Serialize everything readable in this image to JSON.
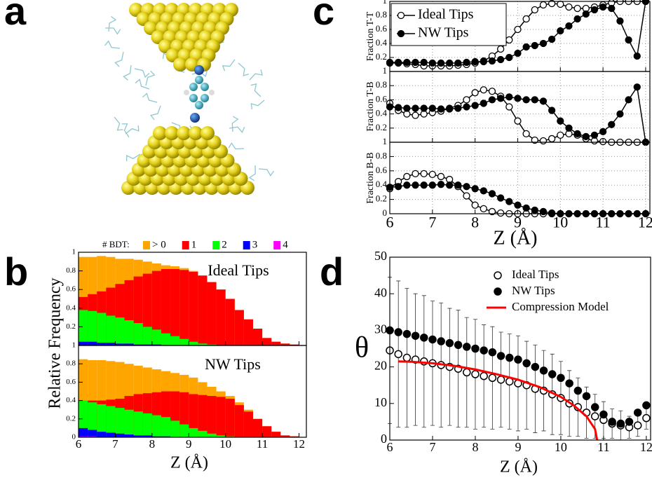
{
  "panel_labels": [
    "a",
    "b",
    "c",
    "d"
  ],
  "chart_data": [
    {
      "type": "area",
      "annotation": "Ideal Tips",
      "legend_title": "# BDT:",
      "x": [
        6,
        6.25,
        6.5,
        6.75,
        7,
        7.25,
        7.5,
        7.75,
        8,
        8.25,
        8.5,
        8.75,
        9,
        9.25,
        9.5,
        9.75,
        10,
        10.25,
        10.5,
        10.75,
        11,
        11.25,
        11.5,
        11.75,
        12
      ],
      "series": [
        {
          "name": "> 0",
          "color": "#ffa500",
          "values": [
            0.95,
            0.95,
            0.96,
            0.95,
            0.93,
            0.93,
            0.92,
            0.9,
            0.88,
            0.86,
            0.85,
            0.83,
            0.8,
            0.75,
            0.68,
            0.6,
            0.5,
            0.38,
            0.28,
            0.18,
            0.08,
            0.04,
            0.02,
            0.01,
            0
          ]
        },
        {
          "name": "1",
          "color": "#ff0000",
          "values": [
            0.52,
            0.55,
            0.58,
            0.62,
            0.66,
            0.7,
            0.74,
            0.77,
            0.8,
            0.82,
            0.82,
            0.81,
            0.79,
            0.75,
            0.68,
            0.6,
            0.5,
            0.38,
            0.28,
            0.18,
            0.08,
            0.04,
            0.02,
            0.01,
            0
          ]
        },
        {
          "name": "2",
          "color": "#00ff00",
          "values": [
            0.38,
            0.37,
            0.35,
            0.32,
            0.3,
            0.27,
            0.24,
            0.2,
            0.17,
            0.13,
            0.1,
            0.07,
            0.04,
            0.02,
            0.01,
            0,
            0,
            0,
            0,
            0,
            0,
            0,
            0,
            0,
            0
          ]
        },
        {
          "name": "3",
          "color": "#0000ff",
          "values": [
            0.04,
            0.04,
            0.03,
            0.03,
            0.02,
            0.02,
            0.01,
            0.01,
            0.01,
            0,
            0,
            0,
            0,
            0,
            0,
            0,
            0,
            0,
            0,
            0,
            0,
            0,
            0,
            0,
            0
          ]
        },
        {
          "name": "4",
          "color": "#ff00ff",
          "values": [
            0,
            0,
            0,
            0,
            0,
            0,
            0,
            0,
            0,
            0,
            0,
            0,
            0,
            0,
            0,
            0,
            0,
            0,
            0,
            0,
            0,
            0,
            0,
            0,
            0
          ]
        }
      ],
      "xlim": [
        6,
        12.2
      ],
      "xticks": [
        6,
        7,
        8,
        9,
        10,
        11,
        12
      ],
      "xtick_labels": false,
      "ylim": [
        0,
        1
      ],
      "yticks": [
        0.2,
        0.4,
        0.6,
        0.8,
        1
      ],
      "grid": false
    },
    {
      "type": "area",
      "annotation": "NW Tips",
      "xlabel": "Z (Å)",
      "ylabel": "Relative Frequency",
      "x": [
        6,
        6.25,
        6.5,
        6.75,
        7,
        7.25,
        7.5,
        7.75,
        8,
        8.25,
        8.5,
        8.75,
        9,
        9.25,
        9.5,
        9.75,
        10,
        10.25,
        10.5,
        10.75,
        11,
        11.25,
        11.5,
        11.75,
        12
      ],
      "series": [
        {
          "color": "#ffa500",
          "values": [
            0.85,
            0.84,
            0.84,
            0.83,
            0.82,
            0.8,
            0.78,
            0.76,
            0.74,
            0.72,
            0.7,
            0.68,
            0.65,
            0.6,
            0.55,
            0.5,
            0.45,
            0.38,
            0.3,
            0.2,
            0.12,
            0.06,
            0.02,
            0.01,
            0
          ]
        },
        {
          "color": "#ff0000",
          "values": [
            0.4,
            0.4,
            0.4,
            0.41,
            0.42,
            0.45,
            0.47,
            0.48,
            0.49,
            0.5,
            0.5,
            0.49,
            0.47,
            0.46,
            0.45,
            0.44,
            0.42,
            0.35,
            0.28,
            0.2,
            0.12,
            0.06,
            0.02,
            0.01,
            0
          ]
        },
        {
          "color": "#00ff00",
          "values": [
            0.4,
            0.38,
            0.36,
            0.34,
            0.32,
            0.3,
            0.28,
            0.26,
            0.24,
            0.22,
            0.18,
            0.14,
            0.1,
            0.07,
            0.04,
            0.02,
            0.01,
            0,
            0,
            0,
            0,
            0,
            0,
            0,
            0
          ]
        },
        {
          "color": "#0000ff",
          "values": [
            0.1,
            0.08,
            0.06,
            0.05,
            0.04,
            0.03,
            0.02,
            0.02,
            0.01,
            0.01,
            0,
            0,
            0,
            0,
            0,
            0,
            0,
            0,
            0,
            0,
            0,
            0,
            0,
            0,
            0
          ]
        },
        {
          "color": "#ff00ff",
          "values": [
            0.01,
            0.01,
            0,
            0,
            0,
            0,
            0,
            0,
            0,
            0,
            0,
            0,
            0,
            0,
            0,
            0,
            0,
            0,
            0,
            0,
            0,
            0,
            0,
            0,
            0
          ]
        }
      ],
      "xlim": [
        6,
        12.2
      ],
      "xticks": [
        6,
        7,
        8,
        9,
        10,
        11,
        12
      ],
      "ylim": [
        0,
        1
      ],
      "yticks": [
        0,
        0.2,
        0.4,
        0.6,
        0.8,
        1
      ],
      "grid": false
    },
    {
      "type": "line",
      "ylabel": "Fraction T-T",
      "x": [
        6,
        6.2,
        6.4,
        6.6,
        6.8,
        7,
        7.2,
        7.4,
        7.6,
        7.8,
        8,
        8.2,
        8.4,
        8.6,
        8.8,
        9,
        9.2,
        9.4,
        9.6,
        9.8,
        10,
        10.2,
        10.4,
        10.6,
        10.8,
        11,
        11.2,
        11.4,
        11.6,
        11.8,
        12
      ],
      "series": [
        {
          "name": "Ideal Tips",
          "color": "#000000",
          "marker": "open",
          "values": [
            0.12,
            0.12,
            0.11,
            0.1,
            0.08,
            0.08,
            0.08,
            0.08,
            0.09,
            0.1,
            0.12,
            0.15,
            0.22,
            0.32,
            0.45,
            0.6,
            0.75,
            0.88,
            0.95,
            0.97,
            0.96,
            0.92,
            0.9,
            0.9,
            0.92,
            0.95,
            0.98,
            1,
            1,
            1,
            1
          ]
        },
        {
          "name": "NW Tips",
          "color": "#000000",
          "marker": "filled",
          "values": [
            0.13,
            0.13,
            0.13,
            0.13,
            0.13,
            0.12,
            0.12,
            0.12,
            0.12,
            0.13,
            0.14,
            0.14,
            0.15,
            0.17,
            0.2,
            0.26,
            0.35,
            0.37,
            0.4,
            0.46,
            0.58,
            0.65,
            0.75,
            0.82,
            0.88,
            0.92,
            0.9,
            0.72,
            0.45,
            0.22,
            1
          ]
        }
      ],
      "xlim": [
        6,
        12.1
      ],
      "xticks": [
        6,
        7,
        8,
        9,
        10,
        11,
        12
      ],
      "xtick_labels": false,
      "ylim": [
        0,
        1
      ],
      "yticks": [
        0.2,
        0.4,
        0.6,
        0.8,
        1
      ],
      "grid": true
    },
    {
      "type": "line",
      "ylabel": "Fraction T-B",
      "x": [
        6,
        6.2,
        6.4,
        6.6,
        6.8,
        7,
        7.2,
        7.4,
        7.6,
        7.8,
        8,
        8.2,
        8.4,
        8.6,
        8.8,
        9,
        9.2,
        9.4,
        9.6,
        9.8,
        10,
        10.2,
        10.4,
        10.6,
        10.8,
        11,
        11.2,
        11.4,
        11.6,
        11.8,
        12
      ],
      "series": [
        {
          "color": "#000000",
          "marker": "open",
          "values": [
            0.55,
            0.45,
            0.4,
            0.38,
            0.4,
            0.42,
            0.44,
            0.48,
            0.52,
            0.6,
            0.7,
            0.74,
            0.72,
            0.65,
            0.5,
            0.3,
            0.12,
            0.03,
            0.02,
            0.05,
            0.1,
            0.12,
            0.1,
            0.05,
            0.02,
            0.01,
            0,
            0,
            0,
            0,
            0
          ]
        },
        {
          "color": "#000000",
          "marker": "filled",
          "values": [
            0.5,
            0.49,
            0.48,
            0.48,
            0.48,
            0.48,
            0.47,
            0.47,
            0.48,
            0.5,
            0.52,
            0.55,
            0.6,
            0.62,
            0.64,
            0.62,
            0.6,
            0.6,
            0.58,
            0.45,
            0.3,
            0.2,
            0.12,
            0.08,
            0.1,
            0.15,
            0.25,
            0.4,
            0.6,
            0.78,
            0
          ]
        }
      ],
      "xlim": [
        6,
        12.1
      ],
      "xticks": [
        6,
        7,
        8,
        9,
        10,
        11,
        12
      ],
      "xtick_labels": false,
      "ylim": [
        0,
        1
      ],
      "yticks": [
        0.2,
        0.4,
        0.6,
        0.8,
        1
      ],
      "grid": true
    },
    {
      "type": "line",
      "ylabel": "Fraction B-B",
      "xlabel": "Z (Å)",
      "x": [
        6,
        6.2,
        6.4,
        6.6,
        6.8,
        7,
        7.2,
        7.4,
        7.6,
        7.8,
        8,
        8.2,
        8.4,
        8.6,
        8.8,
        9,
        9.2,
        9.4,
        9.6,
        9.8,
        10,
        10.2,
        10.4,
        10.6,
        10.8,
        11,
        11.2,
        11.4,
        11.6,
        11.8,
        12
      ],
      "series": [
        {
          "color": "#000000",
          "marker": "open",
          "values": [
            0.35,
            0.45,
            0.52,
            0.56,
            0.56,
            0.55,
            0.52,
            0.48,
            0.38,
            0.25,
            0.12,
            0.07,
            0.03,
            0.01,
            0,
            0,
            0,
            0,
            0,
            0,
            0,
            0,
            0,
            0,
            0,
            0,
            0,
            0,
            0,
            0,
            0
          ]
        },
        {
          "color": "#000000",
          "marker": "filled",
          "values": [
            0.37,
            0.38,
            0.4,
            0.4,
            0.4,
            0.4,
            0.41,
            0.4,
            0.4,
            0.38,
            0.35,
            0.32,
            0.28,
            0.22,
            0.17,
            0.12,
            0.08,
            0.05,
            0.03,
            0.01,
            0,
            0,
            0,
            0,
            0,
            0,
            0,
            0,
            0,
            0,
            0
          ]
        }
      ],
      "xlim": [
        6,
        12.1
      ],
      "xticks": [
        6,
        7,
        8,
        9,
        10,
        11,
        12
      ],
      "ylim": [
        0,
        1
      ],
      "yticks": [
        0,
        0.2,
        0.4,
        0.6,
        0.8,
        1
      ],
      "grid": true
    },
    {
      "type": "scatter",
      "ylabel": "θ",
      "xlabel": "Z (Å)",
      "series": [
        {
          "name": "Ideal Tips",
          "color": "#000000",
          "style": "open",
          "x": [
            6,
            6.2,
            6.4,
            6.6,
            6.8,
            7,
            7.2,
            7.4,
            7.6,
            7.8,
            8,
            8.2,
            8.4,
            8.6,
            8.8,
            9,
            9.2,
            9.4,
            9.6,
            9.8,
            10,
            10.2,
            10.4,
            10.6,
            10.8,
            11,
            11.2,
            11.4,
            11.6,
            11.8,
            12
          ],
          "values": [
            24.5,
            23.5,
            22.5,
            22,
            21.5,
            21,
            20.5,
            20,
            19.5,
            18.5,
            18,
            17.5,
            17,
            16.5,
            16,
            15.5,
            15,
            14,
            13.5,
            12.5,
            11.5,
            10,
            9,
            7.5,
            6.5,
            5.5,
            4.5,
            4,
            3.5,
            4,
            6
          ],
          "errors": [
            20,
            20,
            19,
            18,
            18,
            17,
            17,
            16,
            16,
            15,
            15,
            14,
            14,
            13,
            13,
            13,
            12,
            12,
            11,
            11,
            10,
            9,
            8,
            7,
            6,
            5,
            4,
            4,
            3,
            3,
            3
          ]
        },
        {
          "name": "NW Tips",
          "color": "#000000",
          "style": "filled",
          "x": [
            6,
            6.2,
            6.4,
            6.6,
            6.8,
            7,
            7.2,
            7.4,
            7.6,
            7.8,
            8,
            8.2,
            8.4,
            8.6,
            8.8,
            9,
            9.2,
            9.4,
            9.6,
            9.8,
            10,
            10.2,
            10.4,
            10.6,
            10.8,
            11,
            11.2,
            11.4,
            11.6,
            11.8,
            12
          ],
          "values": [
            30,
            29.5,
            29,
            28.5,
            28,
            27.5,
            27,
            26.5,
            26,
            25.5,
            25,
            24.5,
            24,
            23,
            22.5,
            22,
            21,
            20,
            19,
            18,
            17,
            15.5,
            13.5,
            12,
            9,
            7,
            5,
            4.5,
            5,
            7.5,
            9.5
          ]
        },
        {
          "name": "Compression Model",
          "color": "#ff0000",
          "style": "line",
          "x": [
            6.2,
            6.5,
            7,
            7.5,
            8,
            8.5,
            9,
            9.5,
            10,
            10.3,
            10.6,
            10.8,
            10.85
          ],
          "values": [
            21.5,
            21.4,
            21,
            20.3,
            19.3,
            18,
            16.5,
            14.5,
            11.8,
            9.5,
            6.5,
            3,
            0
          ]
        }
      ],
      "xlim": [
        6,
        12.1
      ],
      "xticks": [
        6,
        7,
        8,
        9,
        10,
        11,
        12
      ],
      "ylim": [
        0,
        50
      ],
      "yticks": [
        0,
        10,
        20,
        30,
        40,
        50
      ],
      "grid": false
    }
  ]
}
